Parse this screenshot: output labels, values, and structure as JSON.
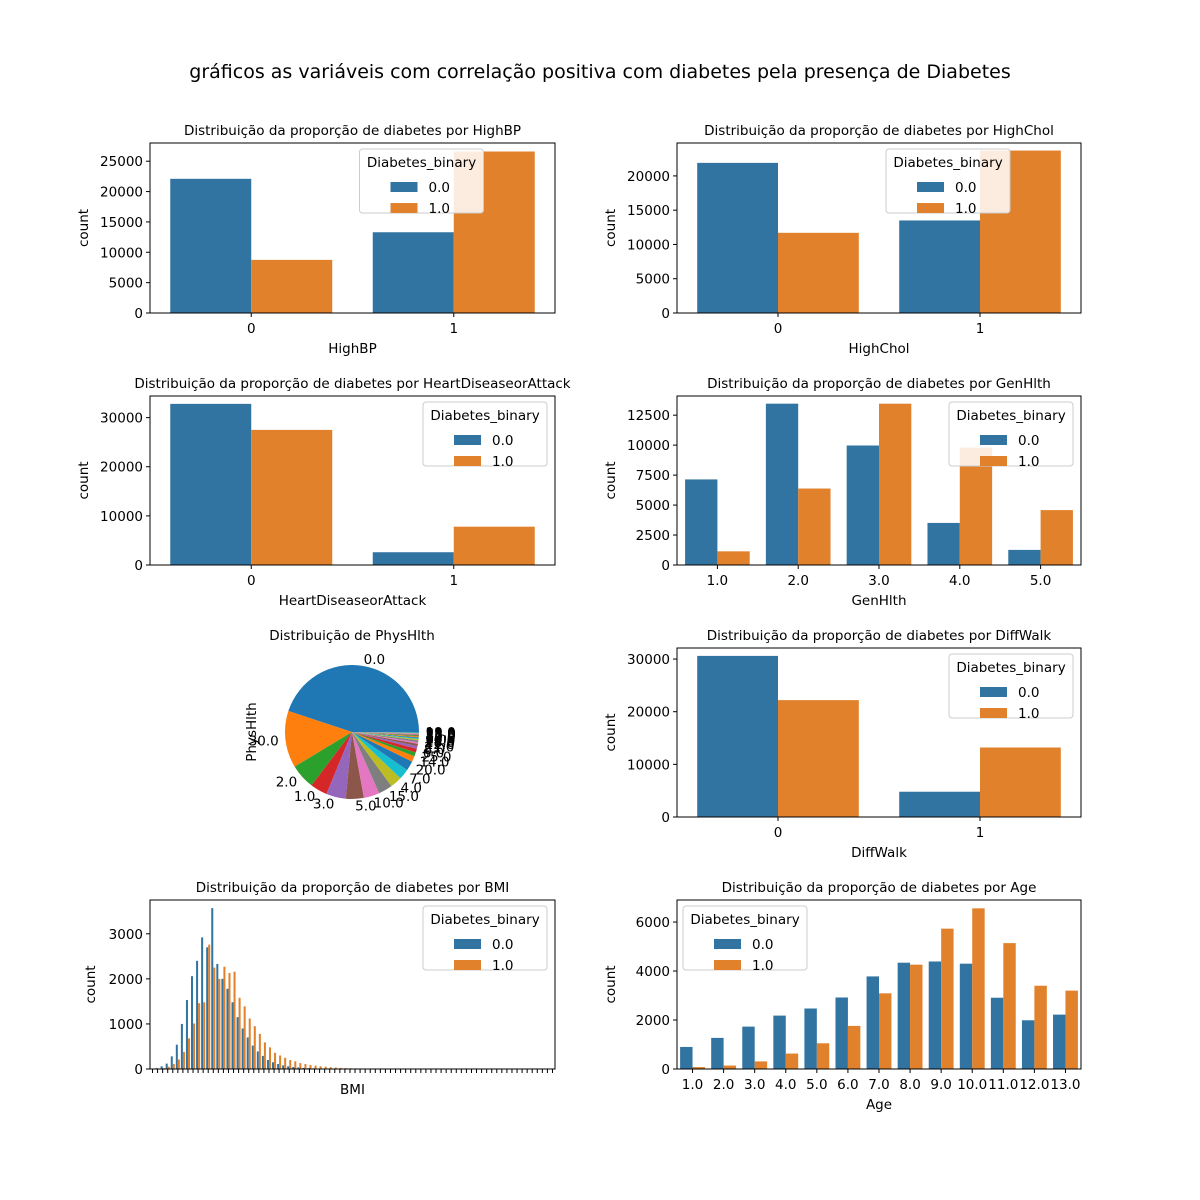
{
  "figure_title": "gráficos as variáveis com correlação positiva com diabetes pela presença de Diabetes",
  "colors": {
    "class0": "#3274a1",
    "class1": "#e1812c"
  },
  "legend": {
    "title": "Diabetes_binary",
    "labels": [
      "0.0",
      "1.0"
    ]
  },
  "chart_data": [
    {
      "type": "bar",
      "title": "Distribuição da proporção de diabetes por HighBP",
      "xlabel": "HighBP",
      "ylabel": "count",
      "categories": [
        "0",
        "1"
      ],
      "series": [
        {
          "name": "0.0",
          "values": [
            22100,
            13300
          ]
        },
        {
          "name": "1.0",
          "values": [
            8750,
            26600
          ]
        }
      ],
      "ylim": [
        0,
        28000
      ],
      "yticks": [
        0,
        5000,
        10000,
        15000,
        20000,
        25000
      ],
      "legend_position": "upper center"
    },
    {
      "type": "bar",
      "title": "Distribuição da proporção de diabetes por HighChol",
      "xlabel": "HighChol",
      "ylabel": "count",
      "categories": [
        "0",
        "1"
      ],
      "series": [
        {
          "name": "0.0",
          "values": [
            21900,
            13500
          ]
        },
        {
          "name": "1.0",
          "values": [
            11700,
            23700
          ]
        }
      ],
      "ylim": [
        0,
        24800
      ],
      "yticks": [
        0,
        5000,
        10000,
        15000,
        20000
      ],
      "legend_position": "upper center"
    },
    {
      "type": "bar",
      "title": "Distribuição da proporção de diabetes por HeartDiseaseorAttack",
      "xlabel": "HeartDiseaseorAttack",
      "ylabel": "count",
      "categories": [
        "0",
        "1"
      ],
      "series": [
        {
          "name": "0.0",
          "values": [
            32800,
            2600
          ]
        },
        {
          "name": "1.0",
          "values": [
            27500,
            7800
          ]
        }
      ],
      "ylim": [
        0,
        34400
      ],
      "yticks": [
        0,
        10000,
        20000,
        30000
      ],
      "legend_position": "upper right"
    },
    {
      "type": "bar",
      "title": "Distribuição da proporção de diabetes por GenHlth",
      "xlabel": "GenHlth",
      "ylabel": "count",
      "categories": [
        "1.0",
        "2.0",
        "3.0",
        "4.0",
        "5.0"
      ],
      "series": [
        {
          "name": "0.0",
          "values": [
            7140,
            13460,
            9970,
            3510,
            1260
          ]
        },
        {
          "name": "1.0",
          "values": [
            1140,
            6380,
            13460,
            9790,
            4580
          ]
        }
      ],
      "ylim": [
        0,
        14100
      ],
      "yticks": [
        0,
        2500,
        5000,
        7500,
        10000,
        12500
      ],
      "tick_labels": [
        "0",
        "2500",
        "5000",
        "7500",
        "10000",
        "12500"
      ],
      "legend_position": "upper right"
    },
    {
      "type": "pie",
      "title": "Distribuição de PhysHlth",
      "ylabel": "PhysHlth",
      "labels": [
        "0.0",
        "30.0",
        "2.0",
        "1.0",
        "3.0",
        "5.0",
        "10.0",
        "15.0",
        "4.0",
        "7.0",
        "20.0",
        "14.0",
        "25.0",
        "6.0",
        "8.0",
        "21.0",
        "12.0",
        "28.0",
        "29.0",
        "9.0",
        "18.0",
        "16.0",
        "27.0",
        "17.0",
        "24.0",
        "22.0",
        "26.0",
        "13.0",
        "11.0",
        "23.0",
        "19.0"
      ],
      "values": [
        42.6,
        13.0,
        5.7,
        3.9,
        4.5,
        4.1,
        3.6,
        3.2,
        2.7,
        2.4,
        2.2,
        1.3,
        0.9,
        0.9,
        0.6,
        0.5,
        0.4,
        0.4,
        0.3,
        0.2,
        0.2,
        0.2,
        0.2,
        0.1,
        0.1,
        0.1,
        0.1,
        0.1,
        0.1,
        0.1,
        0.1
      ],
      "label_order": [
        "0.0",
        "30.0",
        "2.0",
        "1.0",
        "3.0",
        "5.0",
        "10.0",
        "15.0",
        "4.0",
        "7.0",
        "20.0",
        "14.0",
        "25.0",
        "6.0",
        "8.0",
        "21.0",
        "12.0",
        "28.0",
        "29.0",
        "9.0",
        "18.0",
        "16.0",
        "27.0",
        "17.0",
        "24.0",
        "22.0",
        "26.0",
        "13.0",
        "11.0",
        "23.0",
        "19.0"
      ],
      "slice_colors": [
        "#1f77b4",
        "#ff7f0e",
        "#2ca02c",
        "#d62728",
        "#9467bd",
        "#8c564b",
        "#e377c2",
        "#7f7f7f",
        "#bcbd22",
        "#17becf"
      ]
    },
    {
      "type": "bar",
      "title": "Distribuição da proporção de diabetes por DiffWalk",
      "xlabel": "DiffWalk",
      "ylabel": "count",
      "categories": [
        "0",
        "1"
      ],
      "series": [
        {
          "name": "0.0",
          "values": [
            30600,
            4800
          ]
        },
        {
          "name": "1.0",
          "values": [
            22200,
            13200
          ]
        }
      ],
      "ylim": [
        0,
        32100
      ],
      "yticks": [
        0,
        10000,
        20000,
        30000
      ],
      "legend_position": "upper right"
    },
    {
      "type": "bar",
      "title": "Distribuição da proporção de diabetes por BMI",
      "xlabel": "BMI",
      "ylabel": "count",
      "category_labels_shown": false,
      "series": [
        {
          "name": "0.0",
          "values": [
            5,
            20,
            60,
            120,
            280,
            540,
            1000,
            1530,
            2060,
            2400,
            2920,
            2700,
            3570,
            2330,
            2000,
            1780,
            1480,
            1150,
            900,
            700,
            520,
            390,
            290,
            200,
            150,
            110,
            80,
            60,
            45,
            35,
            25,
            20,
            15,
            12,
            10,
            8,
            6,
            5,
            4,
            3,
            3,
            2,
            2,
            2,
            1,
            1,
            1,
            1,
            1,
            1,
            1,
            1,
            0,
            0,
            0,
            0,
            0,
            0,
            0,
            0,
            0,
            0,
            0,
            0,
            0,
            0,
            0,
            0,
            0,
            0,
            0,
            0,
            0,
            0,
            0,
            0,
            0,
            0,
            0,
            0
          ]
        },
        {
          "name": "1.0",
          "values": [
            3,
            8,
            20,
            50,
            110,
            210,
            380,
            680,
            1010,
            1460,
            1480,
            2760,
            2250,
            2000,
            2270,
            2130,
            2160,
            1580,
            1390,
            1120,
            950,
            780,
            590,
            480,
            360,
            300,
            250,
            200,
            170,
            130,
            110,
            90,
            75,
            60,
            50,
            40,
            32,
            25,
            20,
            16,
            13,
            11,
            9,
            7,
            6,
            5,
            4,
            4,
            3,
            3,
            2,
            2,
            2,
            1,
            1,
            1,
            1,
            1,
            1,
            1,
            1,
            1,
            0,
            0,
            0,
            0,
            0,
            0,
            0,
            0,
            0,
            0,
            0,
            0,
            0,
            0,
            0,
            0,
            0,
            0
          ]
        }
      ],
      "ylim": [
        0,
        3750
      ],
      "yticks": [
        0,
        1000,
        2000,
        3000
      ],
      "legend_position": "upper right"
    },
    {
      "type": "bar",
      "title": "Distribuição da proporção de diabetes por Age",
      "xlabel": "Age",
      "ylabel": "count",
      "categories": [
        "1.0",
        "2.0",
        "3.0",
        "4.0",
        "5.0",
        "6.0",
        "7.0",
        "8.0",
        "9.0",
        "10.0",
        "11.0",
        "12.0",
        "13.0"
      ],
      "series": [
        {
          "name": "0.0",
          "values": [
            900,
            1270,
            1730,
            2180,
            2470,
            2920,
            3780,
            4340,
            4390,
            4300,
            2910,
            1990,
            2220
          ]
        },
        {
          "name": "1.0",
          "values": [
            80,
            140,
            310,
            630,
            1050,
            1760,
            3090,
            4260,
            5730,
            6560,
            5140,
            3400,
            3200
          ]
        }
      ],
      "ylim": [
        0,
        6900
      ],
      "yticks": [
        0,
        2000,
        4000,
        6000
      ],
      "legend_position": "upper left"
    }
  ]
}
